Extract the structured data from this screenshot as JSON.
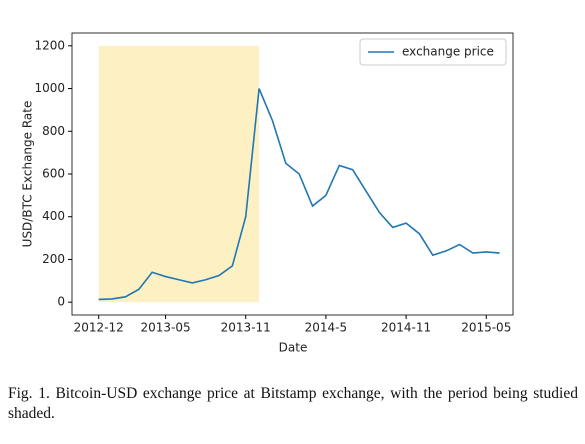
{
  "chart_data": {
    "type": "line",
    "x_label": "Date",
    "y_label": "USD/BTC Exchange Rate",
    "x": [
      "2012-12",
      "2013-01",
      "2013-02",
      "2013-03",
      "2013-04",
      "2013-05",
      "2013-06",
      "2013-07",
      "2013-08",
      "2013-09",
      "2013-10",
      "2013-11",
      "2013-12",
      "2014-01",
      "2014-02",
      "2014-03",
      "2014-04",
      "2014-05",
      "2014-06",
      "2014-07",
      "2014-08",
      "2014-09",
      "2014-10",
      "2014-11",
      "2014-12",
      "2015-01",
      "2015-02",
      "2015-03",
      "2015-04",
      "2015-05",
      "2015-06"
    ],
    "series": [
      {
        "name": "exchange price",
        "color": "#1f77b4",
        "values": [
          13,
          15,
          25,
          60,
          140,
          120,
          105,
          90,
          105,
          125,
          170,
          400,
          1000,
          850,
          650,
          600,
          450,
          500,
          640,
          620,
          520,
          420,
          350,
          370,
          320,
          220,
          240,
          270,
          230,
          235,
          230
        ]
      }
    ],
    "shade": [
      "2012-12",
      "2013-12"
    ],
    "shade_color": "#fdf0c2",
    "xlim": [
      "2012-10",
      "2015-07"
    ],
    "xticks": [
      "2012-12",
      "2013-05",
      "2013-11",
      "2014-5",
      "2014-11",
      "2015-05"
    ],
    "ylim": [
      -60,
      1260
    ],
    "yticks": [
      0,
      200,
      400,
      600,
      800,
      1000,
      1200
    ],
    "legend": "upper right"
  },
  "caption": "Fig. 1.  Bitcoin-USD exchange price at Bitstamp exchange, with the period being studied shaded."
}
